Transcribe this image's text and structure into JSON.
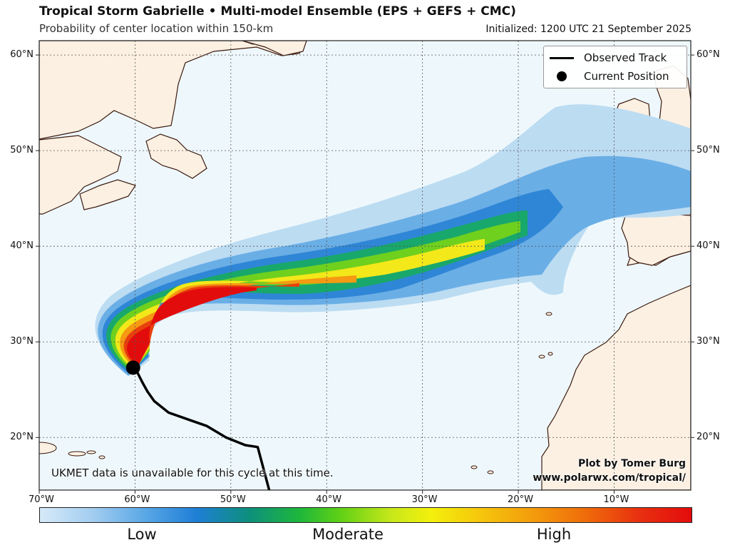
{
  "header": {
    "title": "Tropical Storm Gabrielle • Multi-model Ensemble (EPS + GEFS + CMC)",
    "subtitle": "Probability of center location within 150-km",
    "initialized": "Initialized: 1200 UTC 21 September 2025"
  },
  "map": {
    "lon_range": [
      -70,
      -2
    ],
    "lat_range": [
      14.5,
      61.5
    ],
    "lat_labels": [
      "60°N",
      "50°N",
      "40°N",
      "30°N",
      "20°N"
    ],
    "lat_values": [
      60,
      50,
      40,
      30,
      20
    ],
    "lon_labels": [
      "70°W",
      "60°W",
      "50°W",
      "40°W",
      "30°W",
      "20°W",
      "10°W"
    ],
    "lon_values": [
      -70,
      -60,
      -50,
      -40,
      -30,
      -20,
      -10
    ],
    "colors": {
      "ocean": "#eef8fc",
      "land": "#fbf0e2",
      "coast": "#3c1a10",
      "grid": "#555555"
    }
  },
  "observed_track": [
    [
      -46,
      14.5
    ],
    [
      -47.2,
      19
    ],
    [
      -48.5,
      19.2
    ],
    [
      -50.5,
      20.0
    ],
    [
      -52.5,
      21.2
    ],
    [
      -54.5,
      21.9
    ],
    [
      -56.5,
      22.6
    ],
    [
      -58.0,
      23.8
    ],
    [
      -58.7,
      24.8
    ],
    [
      -59.2,
      25.7
    ],
    [
      -59.7,
      26.7
    ],
    [
      -60.2,
      27.3
    ]
  ],
  "current_position": {
    "lon": -60.2,
    "lat": 27.3
  },
  "legend": {
    "observed_track": "Observed Track",
    "current_position": "Current Position"
  },
  "note": "UKMET data is unavailable for this cycle at this time.",
  "credit": {
    "line1": "Plot by Tomer Burg",
    "line2": "www.polarwx.com/tropical/"
  },
  "colorbar": {
    "low": "Low",
    "moderate": "Moderate",
    "high": "High"
  }
}
